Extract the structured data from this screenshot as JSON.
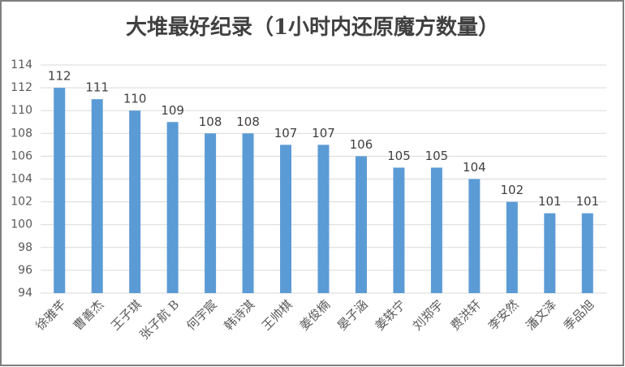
{
  "chart_data": {
    "type": "bar",
    "title": "大堆最好纪录（1小时内还原魔方数量）",
    "categories": [
      "徐雅芊",
      "曹善杰",
      "王子琪",
      "张子航 B",
      "何宇宸",
      "韩诗淇",
      "王帅棋",
      "姜俊楠",
      "晏子涵",
      "姜轶宁",
      "刘郑宇",
      "费洪轩",
      "李安然",
      "潘文泽",
      "季品旭"
    ],
    "values": [
      112,
      111,
      110,
      109,
      108,
      108,
      107,
      107,
      106,
      105,
      105,
      104,
      102,
      101,
      101
    ],
    "color": "#5b9bd5",
    "ylim": [
      94,
      114
    ],
    "yticks": [
      94,
      96,
      98,
      100,
      102,
      104,
      106,
      108,
      110,
      112,
      114
    ],
    "grid": true
  }
}
